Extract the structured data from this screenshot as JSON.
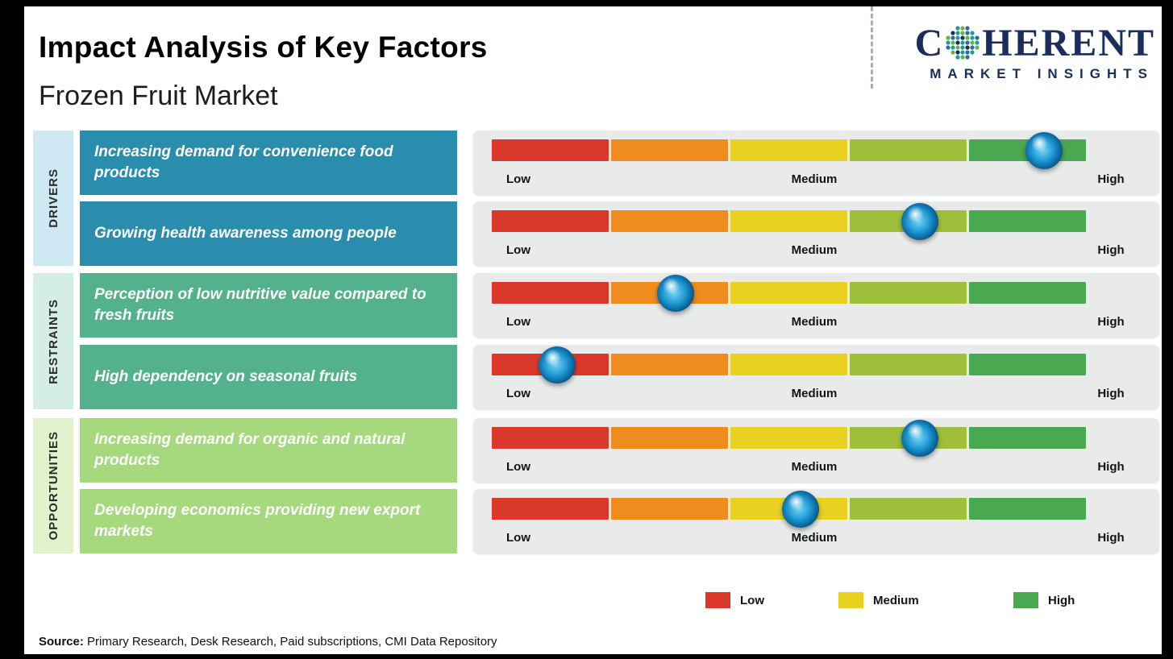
{
  "frame": {
    "border_color": "#000000",
    "page_bg": "#ffffff"
  },
  "header": {
    "title": "Impact Analysis of Key Factors",
    "subtitle": "Frozen Fruit Market"
  },
  "logo": {
    "part1": "C",
    "part2": "HERENT",
    "tagline": "MARKET INSIGHTS",
    "color": "#1b2d5e"
  },
  "icons": {
    "logo_o": "dotted-globe",
    "impact_marker": "glossy-blue-sphere",
    "legend_swatch": "color-square"
  },
  "scale_labels": {
    "low": "Low",
    "medium": "Medium",
    "high": "High"
  },
  "bar_colors": [
    "#da382a",
    "#ef8c1e",
    "#e9d122",
    "#9fbe3a",
    "#4aa850"
  ],
  "groups": [
    {
      "label": "DRIVERS",
      "box_color": "#2b8dad",
      "strip_color": "#cfe9f4",
      "rows": [
        {
          "text": "Increasing demand for convenience food products",
          "impact_pct": 93
        },
        {
          "text": "Growing health awareness among people",
          "impact_pct": 72
        }
      ]
    },
    {
      "label": "RESTRAINTS",
      "box_color": "#53b18d",
      "strip_color": "#d5eee3",
      "rows": [
        {
          "text": "Perception of low nutritive value compared to fresh fruits",
          "impact_pct": 31
        },
        {
          "text": "High dependency on seasonal fruits",
          "impact_pct": 11
        }
      ]
    },
    {
      "label": "OPPORTUNITIES",
      "box_color": "#a6d97d",
      "strip_color": "#e1f2cd",
      "rows": [
        {
          "text": "Increasing demand for organic and natural products",
          "impact_pct": 72
        },
        {
          "text": "Developing economics providing new export markets",
          "impact_pct": 52
        }
      ]
    }
  ],
  "legend": [
    {
      "label": "Low",
      "color": "#da382a"
    },
    {
      "label": "Medium",
      "color": "#e9d122"
    },
    {
      "label": "High",
      "color": "#4aa850"
    }
  ],
  "footer": {
    "source_label": "Source:",
    "source_text": "Primary Research, Desk Research, Paid subscriptions, CMI Data Repository"
  },
  "chart_data": {
    "type": "scatter",
    "title": "Impact Analysis of Key Factors",
    "subtitle": "Frozen Fruit Market",
    "x_axis": {
      "scale_labels": [
        "Low",
        "Medium",
        "High"
      ],
      "range_pct": [
        0,
        100
      ],
      "segments": 5,
      "grid": false
    },
    "categories": [
      "Increasing demand for convenience food products",
      "Growing health awareness among people",
      "Perception of low nutritive value compared to fresh fruits",
      "High dependency on seasonal fruits",
      "Increasing demand for organic and natural products",
      "Developing economics providing new export markets"
    ],
    "category_groups": [
      "Drivers",
      "Drivers",
      "Restraints",
      "Restraints",
      "Opportunities",
      "Opportunities"
    ],
    "values_pct": [
      93,
      72,
      31,
      11,
      72,
      52
    ],
    "impact_readings": [
      "High",
      "Medium-High",
      "Low-Medium",
      "Low",
      "Medium-High",
      "Medium"
    ],
    "legend": [
      "Low",
      "Medium",
      "High"
    ],
    "legend_position": "bottom"
  }
}
